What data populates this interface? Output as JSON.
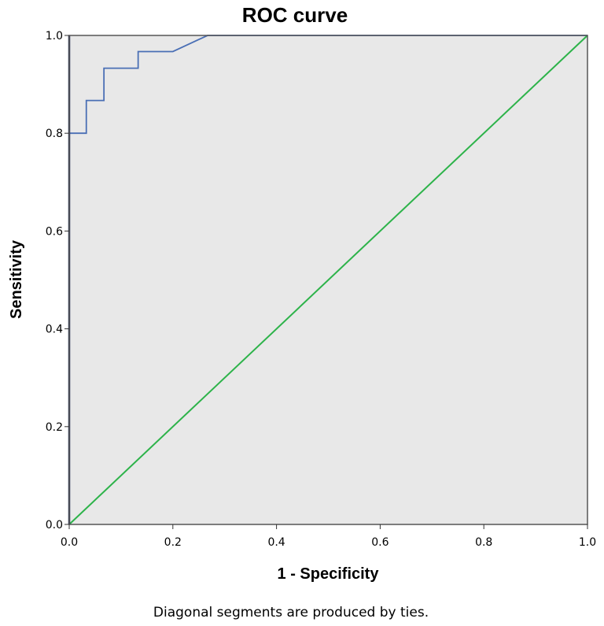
{
  "chart_data": {
    "type": "line",
    "title": "ROC curve",
    "xlabel": "1 - Specificity",
    "ylabel": "Sensitivity",
    "footnote": "Diagonal segments are produced by ties.",
    "xlim": [
      0,
      1
    ],
    "ylim": [
      0,
      1
    ],
    "xticks": [
      "0.0",
      "0.2",
      "0.4",
      "0.6",
      "0.8",
      "1.0"
    ],
    "yticks": [
      "0.0",
      "0.2",
      "0.4",
      "0.6",
      "0.8",
      "1.0"
    ],
    "grid": false,
    "series": [
      {
        "color": "#4a6fb5",
        "x": [
          0,
          0,
          0.033,
          0.033,
          0.067,
          0.067,
          0.133,
          0.133,
          0.2,
          0.267,
          1.0
        ],
        "y": [
          0,
          0.8,
          0.8,
          0.867,
          0.867,
          0.933,
          0.933,
          0.967,
          0.967,
          1.0,
          1.0
        ]
      },
      {
        "color": "#2db34a",
        "x": [
          0,
          1
        ],
        "y": [
          0,
          1
        ]
      }
    ]
  },
  "colors": {
    "plot_background": "#e8e8e8",
    "frame": "#555555",
    "roc_curve": "#4a6fb5",
    "reference_line": "#2db34a"
  }
}
